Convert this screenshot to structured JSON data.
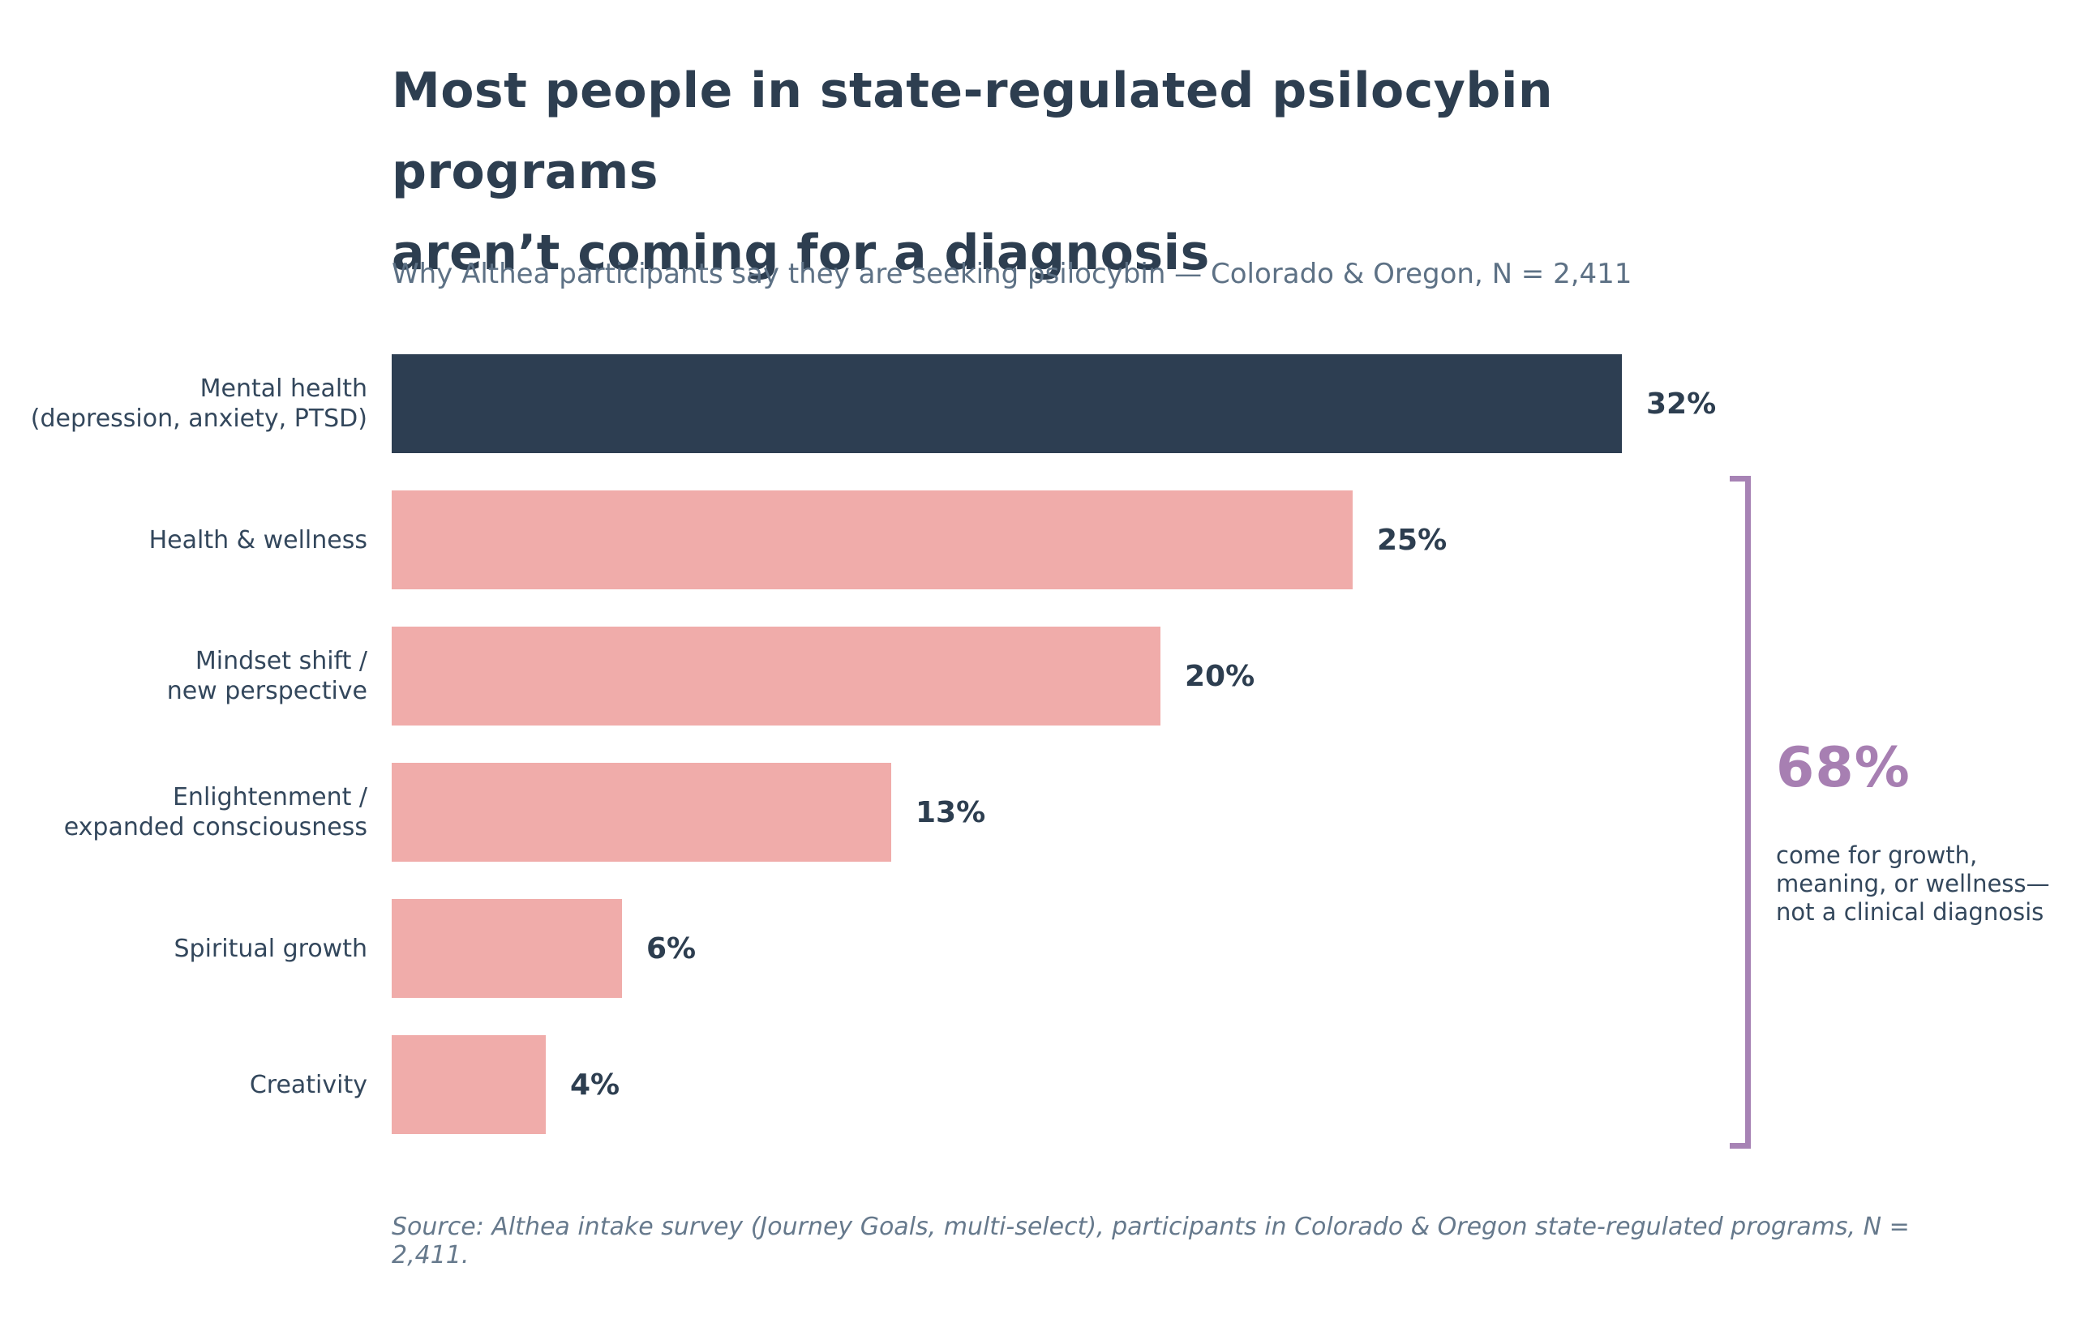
{
  "header": {
    "title_lines": [
      "Most people in state-regulated psilocybin programs",
      "aren’t coming for a diagnosis"
    ],
    "subtitle": "Why Althea participants say they are seeking psilocybin — Colorado & Oregon, N = 2,411"
  },
  "chart_data": {
    "type": "bar",
    "orientation": "horizontal",
    "title": "Most people in state-regulated psilocybin programs aren’t coming for a diagnosis",
    "subtitle": "Why Althea participants say they are seeking psilocybin — Colorado & Oregon, N = 2,411",
    "categories": [
      "Mental health (depression, anxiety, PTSD)",
      "Health & wellness",
      "Mindset shift / new perspective",
      "Enlightenment / expanded consciousness",
      "Spiritual growth",
      "Creativity"
    ],
    "values": [
      32,
      25,
      20,
      13,
      6,
      4
    ],
    "value_labels": [
      "32%",
      "25%",
      "20%",
      "13%",
      "6%",
      "4%"
    ],
    "xlim": [
      0,
      32
    ],
    "grid": false,
    "legend": "none",
    "highlight_index": 0,
    "rows": [
      {
        "label_lines": [
          "Mental health",
          "(depression, anxiety, PTSD)"
        ],
        "value": 32,
        "value_label": "32%",
        "color": "#2d3e52"
      },
      {
        "label_lines": [
          "Health & wellness"
        ],
        "value": 25,
        "value_label": "25%",
        "color": "#f0acaa"
      },
      {
        "label_lines": [
          "Mindset shift /",
          "new perspective"
        ],
        "value": 20,
        "value_label": "20%",
        "color": "#f0acaa"
      },
      {
        "label_lines": [
          "Enlightenment /",
          "expanded consciousness"
        ],
        "value": 13,
        "value_label": "13%",
        "color": "#f0acaa"
      },
      {
        "label_lines": [
          "Spiritual growth"
        ],
        "value": 6,
        "value_label": "6%",
        "color": "#f0acaa"
      },
      {
        "label_lines": [
          "Creativity"
        ],
        "value": 4,
        "value_label": "4%",
        "color": "#f0acaa"
      }
    ],
    "annotation": {
      "headline": "68%",
      "text": "come for growth, meaning, or wellness—not a clinical diagnosis"
    }
  },
  "bracket": {
    "headline": "68%",
    "note_lines": [
      "come for growth,",
      "meaning, or wellness—",
      "not a clinical diagnosis"
    ],
    "color": "#a783b5"
  },
  "footer": {
    "source": "Source: Althea intake survey (Journey Goals, multi-select), participants in Colorado & Oregon state-regulated programs, N = 2,411."
  },
  "colors": {
    "background": "#ffffff",
    "navy": "#2d3e52",
    "pink": "#f0acaa",
    "purple": "#a77fb2",
    "subtitle_gray": "#5d7185",
    "source_gray": "#66798c",
    "label_slate": "#33475c"
  }
}
